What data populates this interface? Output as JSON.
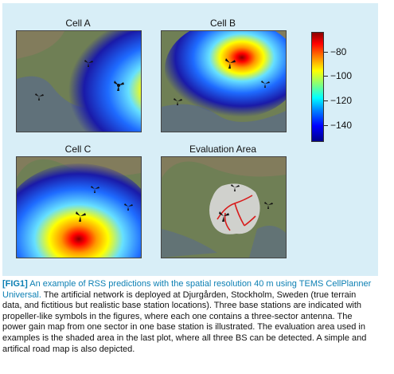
{
  "figure": {
    "panels": [
      {
        "title": "Cell A"
      },
      {
        "title": "Cell B"
      },
      {
        "title": "Cell C"
      },
      {
        "title": "Evaluation Area"
      }
    ],
    "colorbar": {
      "ticks": [
        "−80",
        "−100",
        "−120",
        "−140"
      ],
      "colors": [
        "#8b0000",
        "#ff0000",
        "#ff7f00",
        "#ffff00",
        "#00ffff",
        "#0000ff",
        "#00008b"
      ]
    }
  },
  "caption": {
    "label": "[FIG1]",
    "title": "An example of RSS predictions with the spatial resolution 40 m using TEMS CellPlanner Universal.",
    "body": "The artificial network is deployed at Djurgården, Stockholm, Sweden (true terrain data, and fictitious but realistic base station locations). Three base stations are indicated with propeller-like symbols in the figures, where each one contains a three-sector antenna. The power gain map from one sector in one base station is illustrated. The evaluation area used in examples is the shaded area in the last plot, where all three BS can be detected. A simple and artifical road map is also depicted."
  }
}
